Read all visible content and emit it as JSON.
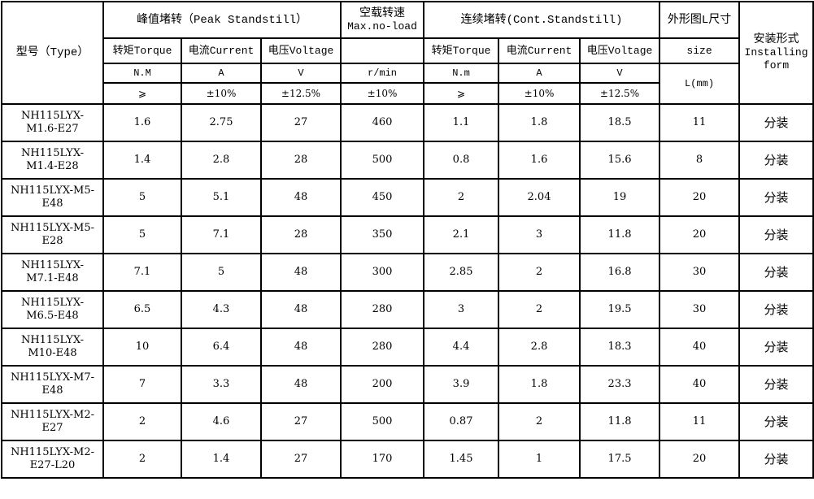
{
  "header": {
    "type": "型号（Type）",
    "peak": "峰值堵转（Peak Standstill）",
    "noload_cn": "空载转速",
    "noload_en": "Max.no-load",
    "cont": "连续堵转(Cont.Standstill)",
    "size_cn": "外形图L尺寸",
    "install_cn": "安装形式",
    "install_en1": "Installing",
    "install_en2": "form",
    "torque": "转矩Torque",
    "current": "电流Current",
    "voltage": "电压Voltage",
    "size": "size",
    "units": {
      "peak_torque": "N.M",
      "peak_current": "A",
      "peak_voltage": "V",
      "speed": "r/min",
      "cont_torque": "N.m",
      "cont_current": "A",
      "cont_voltage": "V",
      "size": "L(mm)"
    },
    "tolerances": {
      "peak_torque": "⩾",
      "peak_current": "±10%",
      "peak_voltage": "±12.5%",
      "speed": "±10%",
      "cont_torque": "⩾",
      "cont_current": "±10%",
      "cont_voltage": "±12.5%"
    }
  },
  "rows": [
    {
      "type1": "NH115LYX-",
      "type2": "M1.6-E27",
      "pt": "1.6",
      "pc": "2.75",
      "pv": "27",
      "speed": "460",
      "ct": "1.1",
      "cc": "1.8",
      "cv": "18.5",
      "size": "11",
      "install": "分装"
    },
    {
      "type1": "NH115LYX-",
      "type2": "M1.4-E28",
      "pt": "1.4",
      "pc": "2.8",
      "pv": "28",
      "speed": "500",
      "ct": "0.8",
      "cc": "1.6",
      "cv": "15.6",
      "size": "8",
      "install": "分装"
    },
    {
      "type1": "NH115LYX-M5-",
      "type2": "E48",
      "pt": "5",
      "pc": "5.1",
      "pv": "48",
      "speed": "450",
      "ct": "2",
      "cc": "2.04",
      "cv": "19",
      "size": "20",
      "install": "分装"
    },
    {
      "type1": "NH115LYX-M5-",
      "type2": "E28",
      "pt": "5",
      "pc": "7.1",
      "pv": "28",
      "speed": "350",
      "ct": "2.1",
      "cc": "3",
      "cv": "11.8",
      "size": "20",
      "install": "分装"
    },
    {
      "type1": "NH115LYX-",
      "type2": "M7.1-E48",
      "pt": "7.1",
      "pc": "5",
      "pv": "48",
      "speed": "300",
      "ct": "2.85",
      "cc": "2",
      "cv": "16.8",
      "size": "30",
      "install": "分装"
    },
    {
      "type1": "NH115LYX-",
      "type2": "M6.5-E48",
      "pt": "6.5",
      "pc": "4.3",
      "pv": "48",
      "speed": "280",
      "ct": "3",
      "cc": "2",
      "cv": "19.5",
      "size": "30",
      "install": "分装"
    },
    {
      "type1": "NH115LYX-",
      "type2": "M10-E48",
      "pt": "10",
      "pc": "6.4",
      "pv": "48",
      "speed": "280",
      "ct": "4.4",
      "cc": "2.8",
      "cv": "18.3",
      "size": "40",
      "install": "分装"
    },
    {
      "type1": "NH115LYX-M7-",
      "type2": "E48",
      "pt": "7",
      "pc": "3.3",
      "pv": "48",
      "speed": "200",
      "ct": "3.9",
      "cc": "1.8",
      "cv": "23.3",
      "size": "40",
      "install": "分装"
    },
    {
      "type1": "NH115LYX-M2-",
      "type2": "E27",
      "pt": "2",
      "pc": "4.6",
      "pv": "27",
      "speed": "500",
      "ct": "0.87",
      "cc": "2",
      "cv": "11.8",
      "size": "11",
      "install": "分装"
    },
    {
      "type1": "NH115LYX-M2-",
      "type2": "E27-L20",
      "pt": "2",
      "pc": "1.4",
      "pv": "27",
      "speed": "170",
      "ct": "1.45",
      "cc": "1",
      "cv": "17.5",
      "size": "20",
      "install": "分装"
    }
  ]
}
